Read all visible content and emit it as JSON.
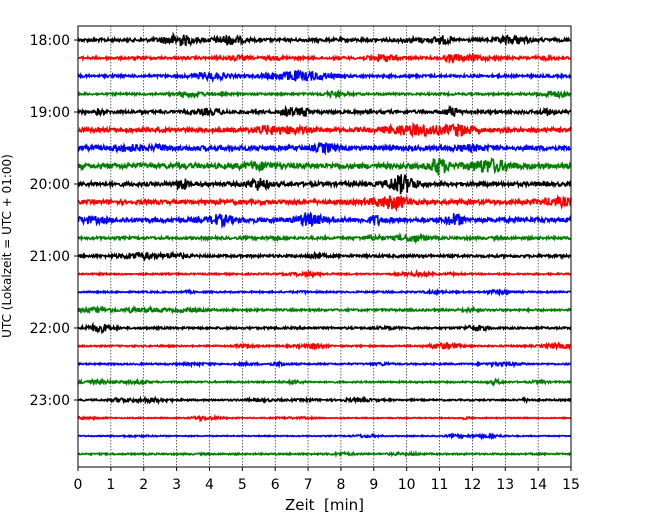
{
  "chart_data": {
    "type": "line",
    "title": "",
    "xlabel": "Zeit  [min]",
    "ylabel": "UTC (Lokalzeit = UTC + 01:00)",
    "xlim": [
      0,
      15
    ],
    "x_ticks": [
      "0",
      "1",
      "2",
      "3",
      "4",
      "5",
      "6",
      "7",
      "8",
      "9",
      "10",
      "11",
      "12",
      "13",
      "14",
      "15"
    ],
    "y_ticks": [
      "18:00",
      "19:00",
      "20:00",
      "21:00",
      "22:00",
      "23:00"
    ],
    "x_grid": true,
    "traces_per_hour": 4,
    "trace_minutes_per_line": 15,
    "colors": [
      "#000000",
      "#ff0000",
      "#0000ff",
      "#008000"
    ],
    "traces": [
      {
        "start": "18:00",
        "color": "#000000",
        "amplitude": 0.6
      },
      {
        "start": "18:15",
        "color": "#ff0000",
        "amplitude": 0.5
      },
      {
        "start": "18:30",
        "color": "#0000ff",
        "amplitude": 0.5
      },
      {
        "start": "18:45",
        "color": "#008000",
        "amplitude": 0.4
      },
      {
        "start": "19:00",
        "color": "#000000",
        "amplitude": 0.6
      },
      {
        "start": "19:15",
        "color": "#ff0000",
        "amplitude": 0.8
      },
      {
        "start": "19:30",
        "color": "#0000ff",
        "amplitude": 0.9
      },
      {
        "start": "19:45",
        "color": "#008000",
        "amplitude": 1.0
      },
      {
        "start": "20:00",
        "color": "#000000",
        "amplitude": 0.8
      },
      {
        "start": "20:15",
        "color": "#ff0000",
        "amplitude": 0.8
      },
      {
        "start": "20:30",
        "color": "#0000ff",
        "amplitude": 0.9
      },
      {
        "start": "20:45",
        "color": "#008000",
        "amplitude": 0.5
      },
      {
        "start": "21:00",
        "color": "#000000",
        "amplitude": 0.5
      },
      {
        "start": "21:15",
        "color": "#ff0000",
        "amplitude": 0.3
      },
      {
        "start": "21:30",
        "color": "#0000ff",
        "amplitude": 0.3
      },
      {
        "start": "21:45",
        "color": "#008000",
        "amplitude": 0.4
      },
      {
        "start": "22:00",
        "color": "#000000",
        "amplitude": 0.4
      },
      {
        "start": "22:15",
        "color": "#ff0000",
        "amplitude": 0.3
      },
      {
        "start": "22:30",
        "color": "#0000ff",
        "amplitude": 0.3
      },
      {
        "start": "22:45",
        "color": "#008000",
        "amplitude": 0.3
      },
      {
        "start": "23:00",
        "color": "#000000",
        "amplitude": 0.3
      },
      {
        "start": "23:15",
        "color": "#ff0000",
        "amplitude": 0.2
      },
      {
        "start": "23:30",
        "color": "#0000ff",
        "amplitude": 0.2
      },
      {
        "start": "23:45",
        "color": "#008000",
        "amplitude": 0.3
      }
    ]
  }
}
